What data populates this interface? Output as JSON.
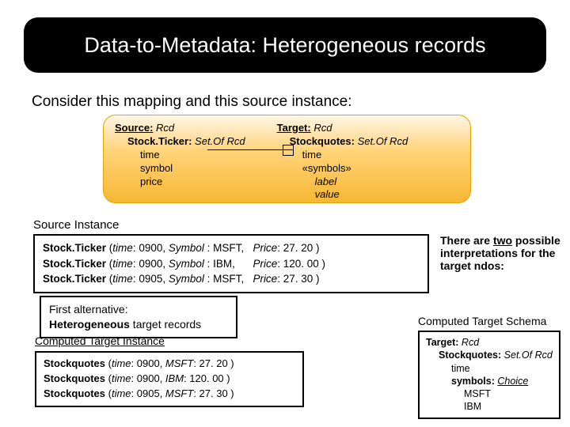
{
  "title": "Data-to-Metadata: Heterogeneous records",
  "intro": "Consider this mapping and this source instance:",
  "schema": {
    "source": {
      "label": "Source:",
      "type": "Rcd",
      "child_label": "Stock.Ticker:",
      "child_type": "Set.Of Rcd",
      "fields": [
        "time",
        "symbol",
        "price"
      ]
    },
    "target": {
      "label": "Target:",
      "type": "Rcd",
      "child_label": "Stockquotes:",
      "child_type": "Set.Of Rcd",
      "fields_plain": "time",
      "fields_bracket": "«symbols»",
      "fields_italic1": "label",
      "fields_italic2": "value"
    }
  },
  "source_instance_label": "Source Instance",
  "source_instance": {
    "rows": [
      {
        "name": "Stock.Ticker",
        "time": "0900",
        "symbol": "MSFT,",
        "price": "27. 20 )"
      },
      {
        "name": "Stock.Ticker",
        "time": "0900",
        "symbol": "IBM,",
        "price": "120. 00 )"
      },
      {
        "name": "Stock.Ticker",
        "time": "0905",
        "symbol": "MSFT,",
        "price": "27. 30 )"
      }
    ],
    "time_label": "time",
    "symbol_label": "Symbol",
    "price_label": "Price"
  },
  "interpretation_text_1": "There are ",
  "interpretation_text_u": "two",
  "interpretation_text_2": " possible interpretations for the target ndos:",
  "first_alt": {
    "line1": "First alternative:",
    "line2a": "Heterogeneous",
    "line2b": " target records"
  },
  "computed_target_instance_label": "Computed Target Instance",
  "computed_target_schema_label": "Computed Target Schema",
  "target_instance": {
    "rows": [
      {
        "name": "Stockquotes",
        "time": "0900",
        "sym": "MSFT",
        "val": "27. 20 )"
      },
      {
        "name": "Stockquotes",
        "time": "0900",
        "sym": "IBM",
        "val": "120. 00 )"
      },
      {
        "name": "Stockquotes",
        "time": "0905",
        "sym": "MSFT",
        "val": "27. 30 )"
      }
    ],
    "time_label": "time"
  },
  "target_schema": {
    "l1a": "Target:",
    "l1b": "Rcd",
    "l2a": "Stockquotes:",
    "l2b": "Set.Of Rcd",
    "l3": "time",
    "l4a": "symbols:",
    "l4b": "Choice",
    "l5": "MSFT",
    "l6": "IBM"
  }
}
